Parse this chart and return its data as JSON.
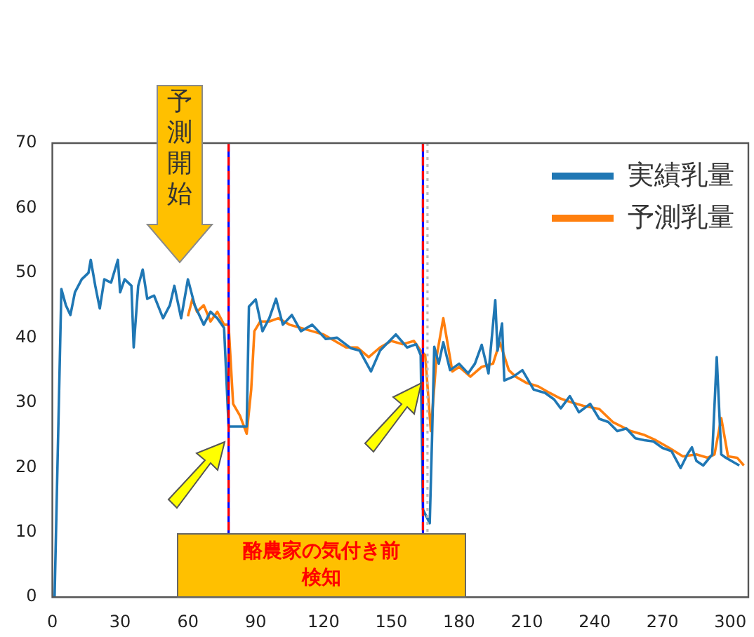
{
  "chart_data": {
    "type": "line",
    "xlim": [
      0,
      308
    ],
    "xticks": [
      0,
      30,
      60,
      90,
      120,
      150,
      180,
      210,
      240,
      270,
      300
    ],
    "ylim": [
      0,
      70
    ],
    "yticks": [
      0,
      10,
      20,
      30,
      40,
      50,
      60,
      70
    ],
    "grid": false,
    "legend": "top right",
    "marker": "none",
    "line_style": "solid",
    "series": [
      {
        "name": "実績乳量",
        "color": "#1f77b4",
        "x": [
          1,
          4,
          6,
          8,
          10,
          13,
          16,
          17,
          19,
          21,
          23,
          26,
          29,
          30,
          32,
          35,
          36,
          38,
          40,
          42,
          45,
          49,
          52,
          54,
          57,
          60,
          63,
          67,
          70,
          73,
          76,
          78,
          82,
          86,
          87,
          90,
          93,
          96,
          99,
          102,
          106,
          110,
          115,
          121,
          126,
          132,
          136,
          141,
          145,
          152,
          157,
          161,
          163,
          164,
          167,
          168,
          169,
          171,
          173,
          176,
          180,
          184,
          187,
          190,
          193,
          196,
          197,
          199,
          200,
          204,
          208,
          213,
          218,
          222,
          225,
          229,
          233,
          238,
          242,
          246,
          250,
          254,
          258,
          262,
          266,
          270,
          274,
          278,
          281,
          283,
          285,
          288,
          292,
          294,
          296,
          298,
          301,
          304
        ],
        "values": [
          0,
          47.5,
          45,
          43.5,
          47,
          49,
          50,
          52,
          48,
          44.5,
          49,
          48.5,
          52,
          47,
          49,
          48,
          38.5,
          48,
          50.5,
          46,
          46.5,
          43,
          45,
          48,
          43,
          49,
          45,
          42,
          44,
          43,
          41.5,
          26.3,
          26.3,
          26.3,
          44.8,
          45.9,
          41,
          43,
          46,
          42,
          43.5,
          41,
          42,
          39.8,
          40,
          38.4,
          38,
          34.8,
          38,
          40.5,
          38.5,
          39,
          37.3,
          13.5,
          11.4,
          24.2,
          38.6,
          36,
          39.3,
          35,
          36,
          34.5,
          36,
          38.9,
          34.5,
          45.8,
          38,
          42.2,
          33.4,
          34,
          35,
          32,
          31.5,
          30.5,
          29.1,
          31,
          28.5,
          29.8,
          27.5,
          27,
          25.6,
          26,
          24.5,
          24.2,
          24,
          23,
          22.5,
          19.9,
          22,
          23.1,
          21,
          20.3,
          22,
          37,
          22,
          21.5,
          20.9,
          20.3
        ]
      },
      {
        "name": "予測乳量",
        "color": "#ff7f0e",
        "x": [
          60,
          62,
          64,
          67,
          70,
          73,
          76,
          78,
          80,
          83,
          86,
          88,
          89.4,
          92,
          96,
          100,
          105,
          110,
          115,
          120,
          125,
          130,
          135,
          140,
          145,
          150,
          155,
          160,
          163,
          165,
          167.5,
          170,
          173,
          177,
          180,
          185,
          190,
          195,
          198,
          202,
          205,
          210,
          215,
          220,
          225,
          230,
          235,
          242,
          248,
          256,
          262,
          267,
          273,
          279,
          285,
          290,
          293,
          296,
          299,
          303,
          306
        ],
        "values": [
          43.3,
          46,
          44,
          45,
          42.5,
          44,
          42,
          42,
          29.8,
          28,
          25.2,
          32,
          41,
          42.5,
          42.5,
          43,
          42,
          41.5,
          41,
          40.5,
          39.5,
          38.5,
          38.5,
          37,
          38.5,
          39.5,
          39,
          39.5,
          38,
          37.3,
          25.6,
          37,
          43,
          34.8,
          35.5,
          34,
          35.5,
          36,
          39.3,
          35,
          34,
          33,
          32.5,
          31.5,
          30.6,
          30,
          29.5,
          29,
          27,
          25.6,
          25,
          24.2,
          23,
          21.7,
          22,
          21.5,
          22,
          27.6,
          21.7,
          21.5,
          20.3
        ]
      }
    ],
    "ref_lines": [
      {
        "axis": "x",
        "value": 78,
        "color": "#0000ff",
        "line_style": "solid"
      },
      {
        "axis": "x",
        "value": 78,
        "color": "#ff0000",
        "line_style": "dashed"
      },
      {
        "axis": "x",
        "value": 164,
        "color": "#0000ff",
        "line_style": "solid"
      },
      {
        "axis": "x",
        "value": 164,
        "color": "#ff0000",
        "line_style": "dashed"
      },
      {
        "axis": "x",
        "value": 166,
        "color": "#bbbbbb",
        "line_style": "dotted"
      }
    ],
    "annotations": [
      "予測開始",
      "酪農家の気付き前検知"
    ]
  }
}
